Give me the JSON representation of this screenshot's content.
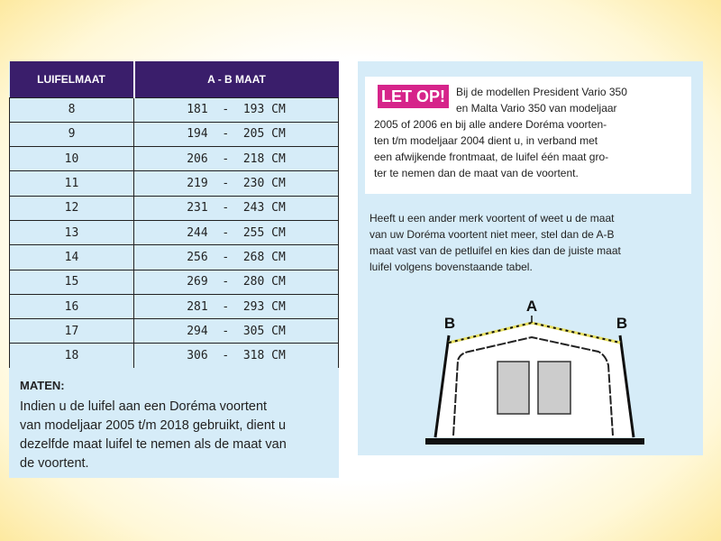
{
  "table": {
    "headers": [
      "LUIFELMAAT",
      "A - B MAAT"
    ],
    "rows": [
      [
        "8",
        "181 - 193 CM"
      ],
      [
        "9",
        "194 - 205 CM"
      ],
      [
        "10",
        "206 - 218 CM"
      ],
      [
        "11",
        "219 - 230 CM"
      ],
      [
        "12",
        "231 - 243 CM"
      ],
      [
        "13",
        "244 - 255 CM"
      ],
      [
        "14",
        "256 - 268 CM"
      ],
      [
        "15",
        "269 - 280 CM"
      ],
      [
        "16",
        "281 - 293 CM"
      ],
      [
        "17",
        "294 - 305 CM"
      ],
      [
        "18",
        "306 - 318 CM"
      ]
    ]
  },
  "maten": {
    "title": "MATEN:",
    "lines": [
      "Indien u de luifel aan een Doréma voortent",
      "van modeljaar 2005 t/m 2018 gebruikt, dient u",
      "dezelfde maat luifel te nemen als de maat van",
      "de voortent."
    ]
  },
  "letop": {
    "badge": "LET OP!",
    "lines": [
      "Bij de modellen President Vario 350",
      "en Malta Vario 350 van modeljaar",
      "2005 of 2006 en bij alle andere Doréma voorten-",
      "ten t/m modeljaar 2004 dient u, in verband met",
      "een afwijkende frontmaat, de luifel één maat gro-",
      "ter te nemen dan de maat van de voortent."
    ]
  },
  "instructions": {
    "lines": [
      "Heeft u een ander merk voortent of weet u de maat",
      "van uw Doréma voortent niet meer, stel dan de A-B",
      "maat vast van de petluifel en kies dan de juiste maat",
      "luifel volgens bovenstaande tabel."
    ]
  },
  "diagram": {
    "label_a": "A",
    "label_b_left": "B",
    "label_b_right": "B"
  },
  "colors": {
    "header": "#3a1e6b",
    "panel": "#d6ecf8",
    "badge": "#d6248a"
  }
}
